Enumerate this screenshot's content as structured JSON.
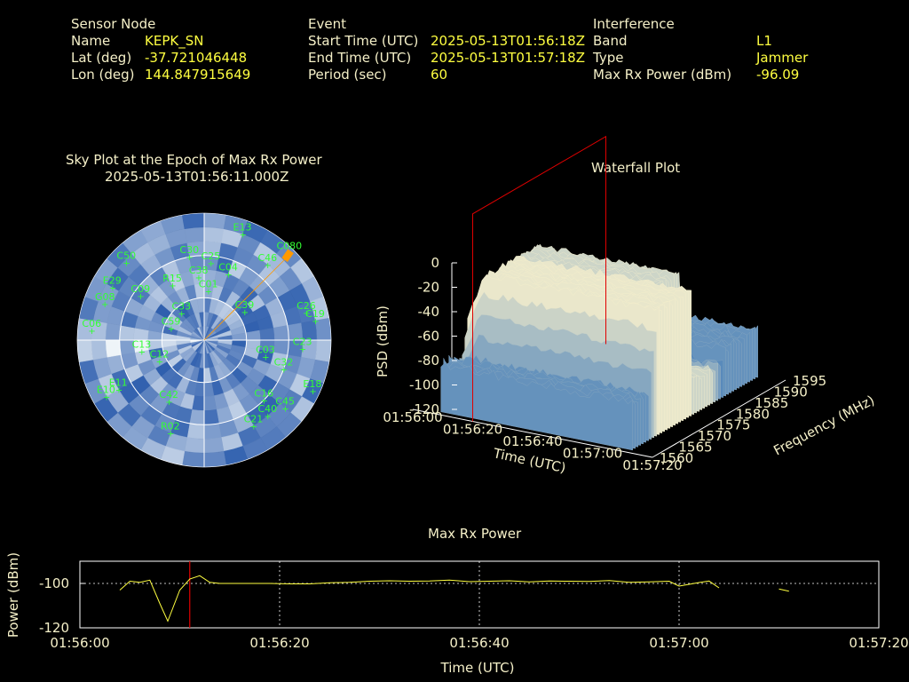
{
  "header": {
    "sensor": {
      "title": "Sensor Node",
      "name_label": "Name",
      "name": "KEPK_SN",
      "lat_label": "Lat (deg)",
      "lat": "-37.721046448",
      "lon_label": "Lon (deg)",
      "lon": "144.847915649"
    },
    "event": {
      "title": "Event",
      "start_label": "Start Time (UTC)",
      "start": "2025-05-13T01:56:18Z",
      "end_label": "End Time (UTC)",
      "end": "2025-05-13T01:57:18Z",
      "period_label": "Period (sec)",
      "period": "60"
    },
    "interference": {
      "title": "Interference",
      "band_label": "Band",
      "band": "L1",
      "type_label": "Type",
      "type": "Jammer",
      "power_label": "Max Rx Power (dBm)",
      "power": "-96.09"
    }
  },
  "colors": {
    "label": "#f5f0c8",
    "value": "#ffff40",
    "satellite": "#33ff33",
    "marker": "#ff9900",
    "cursor": "#e00000",
    "trace": "#ffff40",
    "sky_dark": "#2f5fae",
    "sky_light": "#eef4f8",
    "surface_high": "#f2ecc8",
    "surface_low": "#5c8fc8"
  },
  "chart_data": [
    {
      "type": "scatter",
      "title": "Sky Plot at the Epoch of Max Rx Power",
      "subtitle": "2025-05-13T01:56:11.000Z",
      "elevation_rings_deg": [
        30,
        60
      ],
      "marker": {
        "label": "C080",
        "azimuth_deg": 45,
        "elevation_deg": 5
      },
      "satellites": [
        {
          "label": "C30",
          "az": 350,
          "el": 30
        },
        {
          "label": "E13",
          "az": 20,
          "el": 10
        },
        {
          "label": "C50",
          "az": 315,
          "el": 12
        },
        {
          "label": "C25",
          "az": 5,
          "el": 35
        },
        {
          "label": "C46",
          "az": 40,
          "el": 20
        },
        {
          "label": "E29",
          "az": 300,
          "el": 15
        },
        {
          "label": "R15",
          "az": 330,
          "el": 45
        },
        {
          "label": "C38",
          "az": 355,
          "el": 45
        },
        {
          "label": "C04",
          "az": 20,
          "el": 40
        },
        {
          "label": "C09",
          "az": 305,
          "el": 35
        },
        {
          "label": "G08",
          "az": 290,
          "el": 15
        },
        {
          "label": "C01",
          "az": 5,
          "el": 55
        },
        {
          "label": "C06",
          "az": 275,
          "el": 10
        },
        {
          "label": "C26",
          "az": 75,
          "el": 15
        },
        {
          "label": "C19",
          "az": 80,
          "el": 10
        },
        {
          "label": "C33",
          "az": 320,
          "el": 65
        },
        {
          "label": "C39",
          "az": 55,
          "el": 55
        },
        {
          "label": "C59",
          "az": 290,
          "el": 65
        },
        {
          "label": "C23",
          "az": 95,
          "el": 20
        },
        {
          "label": "C03",
          "az": 105,
          "el": 45
        },
        {
          "label": "C12",
          "az": 245,
          "el": 55
        },
        {
          "label": "C13",
          "az": 260,
          "el": 45
        },
        {
          "label": "C32",
          "az": 110,
          "el": 30
        },
        {
          "label": "C16",
          "az": 135,
          "el": 30
        },
        {
          "label": "C40",
          "az": 140,
          "el": 20
        },
        {
          "label": "E18",
          "az": 115,
          "el": 5
        },
        {
          "label": "C45",
          "az": 130,
          "el": 15
        },
        {
          "label": "E11",
          "az": 240,
          "el": 20
        },
        {
          "label": "E10",
          "az": 240,
          "el": 10
        },
        {
          "label": "C42",
          "az": 210,
          "el": 40
        },
        {
          "label": "R02",
          "az": 200,
          "el": 20
        },
        {
          "label": "C21",
          "az": 150,
          "el": 20
        }
      ]
    },
    {
      "type": "area",
      "title": "Waterfall Plot",
      "xlabel": "Time (UTC)",
      "ylabel": "Frequency (MHz)",
      "zlabel": "PSD (dBm)",
      "x_ticks": [
        "01:56:00",
        "01:56:20",
        "01:56:40",
        "01:57:00",
        "01:57:20"
      ],
      "y_ticks": [
        "1560",
        "1565",
        "1570",
        "1575",
        "1580",
        "1585",
        "1590",
        "1595"
      ],
      "z_ticks": [
        "0",
        "-20",
        "-40",
        "-60",
        "-80",
        "-100",
        "-120"
      ],
      "zlim": [
        -120,
        0
      ],
      "band_mhz": [
        1565,
        1585
      ],
      "plateau_dbm": -15,
      "floor_dbm": -85
    },
    {
      "type": "line",
      "title": "Max Rx Power",
      "xlabel": "Time (UTC)",
      "ylabel": "Power (dBm)",
      "x_ticks": [
        "01:56:00",
        "01:56:20",
        "01:56:40",
        "01:57:00",
        "01:57:20"
      ],
      "y_ticks": [
        "-100",
        "-120"
      ],
      "ylim": [
        -120,
        -90
      ],
      "reference_line_dbm": -100,
      "cursor_time_s": 11,
      "series": [
        {
          "x": [
            4,
            5,
            6,
            7,
            8,
            8.8,
            10,
            11,
            12,
            13,
            14,
            15,
            17,
            19,
            21,
            23,
            25,
            27,
            29,
            31,
            33,
            35,
            37,
            39,
            41,
            43,
            45,
            47,
            49,
            51,
            53,
            55,
            57,
            59,
            60,
            61,
            62,
            63,
            64
          ],
          "y": [
            -103,
            -99,
            -99.5,
            -98.5,
            -109,
            -117,
            -103,
            -98,
            -96.5,
            -99.5,
            -100,
            -100,
            -100,
            -100,
            -100.2,
            -100.2,
            -99.7,
            -99.5,
            -99,
            -98.8,
            -99,
            -98.9,
            -98.5,
            -99.2,
            -99,
            -98.8,
            -99.3,
            -98.9,
            -99,
            -99.1,
            -98.7,
            -99.5,
            -99.3,
            -99,
            -101.2,
            -100.4,
            -99.6,
            -98.9,
            -102
          ]
        },
        {
          "x": [
            70,
            71
          ],
          "y": [
            -102.5,
            -103.5
          ]
        }
      ]
    }
  ]
}
